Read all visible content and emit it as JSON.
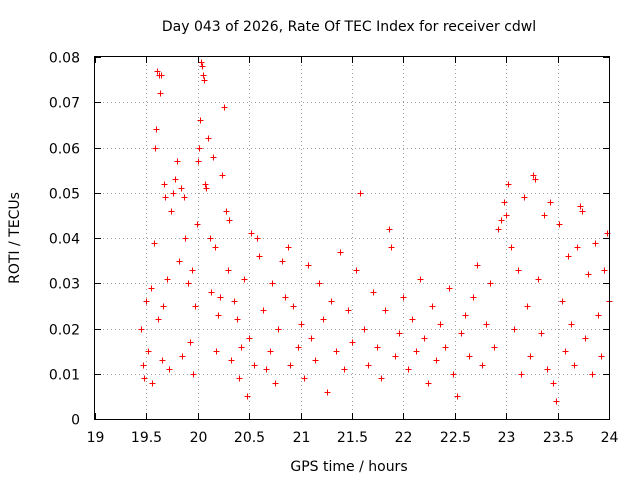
{
  "chart_data": {
    "type": "scatter",
    "title": "Day 043 of 2026, Rate Of TEC Index for receiver cdwl",
    "xlabel": "GPS time / hours",
    "ylabel": "ROTI / TECUs",
    "xlim": [
      19,
      24
    ],
    "ylim": [
      0,
      0.08
    ],
    "x_ticks": [
      "19",
      "19.5",
      "20",
      "20.5",
      "21",
      "21.5",
      "22",
      "22.5",
      "23",
      "23.5",
      "24"
    ],
    "y_ticks": [
      "0",
      "0.01",
      "0.02",
      "0.03",
      "0.04",
      "0.05",
      "0.06",
      "0.07",
      "0.08"
    ],
    "grid": true,
    "marker": "+",
    "color": "#ff0000",
    "series": [
      {
        "name": "ROTI",
        "points": [
          [
            19.45,
            0.02
          ],
          [
            19.47,
            0.012
          ],
          [
            19.48,
            0.009
          ],
          [
            19.5,
            0.026
          ],
          [
            19.52,
            0.015
          ],
          [
            19.54,
            0.029
          ],
          [
            19.55,
            0.008
          ],
          [
            19.57,
            0.039
          ],
          [
            19.58,
            0.06
          ],
          [
            19.59,
            0.064
          ],
          [
            19.6,
            0.077
          ],
          [
            19.61,
            0.022
          ],
          [
            19.62,
            0.076
          ],
          [
            19.63,
            0.072
          ],
          [
            19.64,
            0.076
          ],
          [
            19.65,
            0.013
          ],
          [
            19.66,
            0.025
          ],
          [
            19.67,
            0.052
          ],
          [
            19.68,
            0.049
          ],
          [
            19.7,
            0.031
          ],
          [
            19.72,
            0.011
          ],
          [
            19.74,
            0.046
          ],
          [
            19.76,
            0.05
          ],
          [
            19.78,
            0.053
          ],
          [
            19.8,
            0.057
          ],
          [
            19.82,
            0.035
          ],
          [
            19.84,
            0.051
          ],
          [
            19.85,
            0.014
          ],
          [
            19.87,
            0.049
          ],
          [
            19.88,
            0.04
          ],
          [
            19.9,
            0.03
          ],
          [
            19.92,
            0.017
          ],
          [
            19.94,
            0.033
          ],
          [
            19.95,
            0.01
          ],
          [
            19.97,
            0.025
          ],
          [
            19.99,
            0.043
          ],
          [
            20.0,
            0.057
          ],
          [
            20.01,
            0.06
          ],
          [
            20.02,
            0.066
          ],
          [
            20.03,
            0.079
          ],
          [
            20.04,
            0.078
          ],
          [
            20.05,
            0.076
          ],
          [
            20.06,
            0.075
          ],
          [
            20.07,
            0.052
          ],
          [
            20.08,
            0.051
          ],
          [
            20.1,
            0.062
          ],
          [
            20.12,
            0.04
          ],
          [
            20.13,
            0.028
          ],
          [
            20.15,
            0.058
          ],
          [
            20.17,
            0.038
          ],
          [
            20.18,
            0.015
          ],
          [
            20.2,
            0.023
          ],
          [
            20.22,
            0.027
          ],
          [
            20.24,
            0.054
          ],
          [
            20.25,
            0.069
          ],
          [
            20.27,
            0.046
          ],
          [
            20.29,
            0.033
          ],
          [
            20.3,
            0.044
          ],
          [
            20.32,
            0.013
          ],
          [
            20.35,
            0.026
          ],
          [
            20.38,
            0.022
          ],
          [
            20.4,
            0.009
          ],
          [
            20.42,
            0.016
          ],
          [
            20.45,
            0.031
          ],
          [
            20.48,
            0.005
          ],
          [
            20.5,
            0.018
          ],
          [
            20.52,
            0.041
          ],
          [
            20.55,
            0.012
          ],
          [
            20.58,
            0.04
          ],
          [
            20.6,
            0.036
          ],
          [
            20.63,
            0.024
          ],
          [
            20.66,
            0.011
          ],
          [
            20.7,
            0.015
          ],
          [
            20.72,
            0.03
          ],
          [
            20.75,
            0.008
          ],
          [
            20.78,
            0.02
          ],
          [
            20.82,
            0.035
          ],
          [
            20.85,
            0.027
          ],
          [
            20.88,
            0.038
          ],
          [
            20.9,
            0.012
          ],
          [
            20.93,
            0.025
          ],
          [
            20.97,
            0.016
          ],
          [
            21.0,
            0.021
          ],
          [
            21.03,
            0.009
          ],
          [
            21.07,
            0.034
          ],
          [
            21.1,
            0.018
          ],
          [
            21.14,
            0.013
          ],
          [
            21.18,
            0.03
          ],
          [
            21.22,
            0.022
          ],
          [
            21.26,
            0.006
          ],
          [
            21.3,
            0.026
          ],
          [
            21.34,
            0.015
          ],
          [
            21.38,
            0.037
          ],
          [
            21.42,
            0.011
          ],
          [
            21.46,
            0.024
          ],
          [
            21.5,
            0.017
          ],
          [
            21.54,
            0.033
          ],
          [
            21.58,
            0.05
          ],
          [
            21.62,
            0.02
          ],
          [
            21.66,
            0.012
          ],
          [
            21.7,
            0.028
          ],
          [
            21.74,
            0.016
          ],
          [
            21.78,
            0.009
          ],
          [
            21.82,
            0.024
          ],
          [
            21.86,
            0.042
          ],
          [
            21.88,
            0.038
          ],
          [
            21.92,
            0.014
          ],
          [
            21.96,
            0.019
          ],
          [
            22.0,
            0.027
          ],
          [
            22.04,
            0.011
          ],
          [
            22.08,
            0.022
          ],
          [
            22.12,
            0.015
          ],
          [
            22.16,
            0.031
          ],
          [
            22.2,
            0.018
          ],
          [
            22.24,
            0.008
          ],
          [
            22.28,
            0.025
          ],
          [
            22.32,
            0.013
          ],
          [
            22.36,
            0.021
          ],
          [
            22.4,
            0.016
          ],
          [
            22.44,
            0.029
          ],
          [
            22.48,
            0.01
          ],
          [
            22.52,
            0.005
          ],
          [
            22.56,
            0.019
          ],
          [
            22.6,
            0.023
          ],
          [
            22.64,
            0.014
          ],
          [
            22.68,
            0.027
          ],
          [
            22.72,
            0.034
          ],
          [
            22.76,
            0.012
          ],
          [
            22.8,
            0.021
          ],
          [
            22.84,
            0.03
          ],
          [
            22.88,
            0.016
          ],
          [
            22.92,
            0.042
          ],
          [
            22.95,
            0.044
          ],
          [
            22.98,
            0.048
          ],
          [
            23.0,
            0.045
          ],
          [
            23.02,
            0.052
          ],
          [
            23.05,
            0.038
          ],
          [
            23.08,
            0.02
          ],
          [
            23.11,
            0.033
          ],
          [
            23.14,
            0.01
          ],
          [
            23.17,
            0.049
          ],
          [
            23.2,
            0.025
          ],
          [
            23.23,
            0.014
          ],
          [
            23.26,
            0.054
          ],
          [
            23.28,
            0.053
          ],
          [
            23.31,
            0.031
          ],
          [
            23.34,
            0.019
          ],
          [
            23.37,
            0.045
          ],
          [
            23.4,
            0.011
          ],
          [
            23.43,
            0.048
          ],
          [
            23.46,
            0.008
          ],
          [
            23.48,
            0.004
          ],
          [
            23.51,
            0.043
          ],
          [
            23.54,
            0.026
          ],
          [
            23.57,
            0.015
          ],
          [
            23.6,
            0.036
          ],
          [
            23.63,
            0.021
          ],
          [
            23.66,
            0.012
          ],
          [
            23.69,
            0.038
          ],
          [
            23.72,
            0.047
          ],
          [
            23.74,
            0.046
          ],
          [
            23.77,
            0.018
          ],
          [
            23.8,
            0.032
          ],
          [
            23.83,
            0.01
          ],
          [
            23.86,
            0.039
          ],
          [
            23.89,
            0.023
          ],
          [
            23.92,
            0.014
          ],
          [
            23.95,
            0.033
          ],
          [
            23.98,
            0.041
          ],
          [
            24.0,
            0.026
          ]
        ]
      }
    ]
  }
}
